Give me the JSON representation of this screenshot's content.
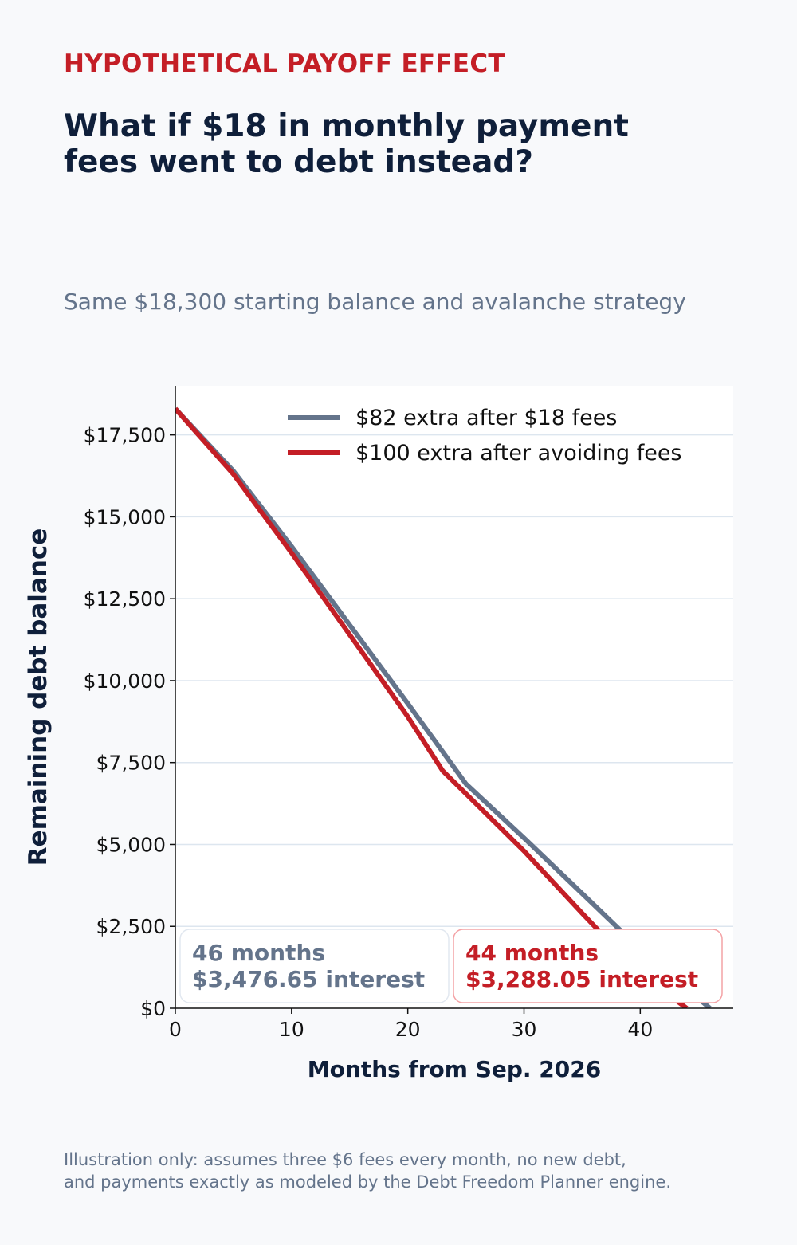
{
  "eyebrow": "HYPOTHETICAL PAYOFF EFFECT",
  "headline": [
    "What if $18 in monthly payment",
    "fees went to debt instead?"
  ],
  "subtitle": "Same $18,300 starting balance and avalanche strategy",
  "footnote": [
    "Illustration only: assumes three $6 fees every month, no new debt,",
    "and payments exactly as modeled by the Debt Freedom Planner engine."
  ],
  "colors": {
    "accent_red": "#c41e26",
    "slate": "#64748b",
    "navy": "#0f1f3a",
    "grid": "#dde6ef"
  },
  "chart_data": {
    "type": "line",
    "xlabel": "Months from Sep. 2026",
    "ylabel": "Remaining debt balance",
    "xlim": [
      0,
      48
    ],
    "ylim": [
      0,
      19000
    ],
    "x_ticks": [
      0,
      10,
      20,
      30,
      40
    ],
    "x_tick_labels": [
      "0",
      "10",
      "20",
      "30",
      "40"
    ],
    "y_ticks": [
      0,
      2500,
      5000,
      7500,
      10000,
      12500,
      15000,
      17500
    ],
    "y_tick_labels": [
      "$0",
      "$2,500",
      "$5,000",
      "$7,500",
      "$10,000",
      "$12,500",
      "$15,000",
      "$17,500"
    ],
    "grid": "horizontal",
    "legend_position": "top-right",
    "series": [
      {
        "name": "$82 extra after $18 fees",
        "color": "#64748b",
        "points": [
          [
            0,
            18300
          ],
          [
            5,
            16400
          ],
          [
            10,
            14100
          ],
          [
            15,
            11700
          ],
          [
            20,
            9300
          ],
          [
            25,
            6850
          ],
          [
            30,
            5200
          ],
          [
            35,
            3500
          ],
          [
            40,
            1800
          ],
          [
            46,
            0
          ]
        ]
      },
      {
        "name": "$100 extra after avoiding fees",
        "color": "#c41e26",
        "points": [
          [
            0,
            18300
          ],
          [
            5,
            16300
          ],
          [
            10,
            13900
          ],
          [
            15,
            11400
          ],
          [
            20,
            8900
          ],
          [
            23,
            7250
          ],
          [
            24,
            6900
          ],
          [
            30,
            4800
          ],
          [
            35,
            2900
          ],
          [
            40,
            1050
          ],
          [
            44,
            0
          ]
        ]
      }
    ],
    "annotations": [
      {
        "line1": "46 months",
        "line2": "$3,476.65 interest",
        "color": "#64748b",
        "border": "#e2e8f0"
      },
      {
        "line1": "44 months",
        "line2": "$3,288.05 interest",
        "color": "#c41e26",
        "border": "#f4a3a6"
      }
    ]
  }
}
